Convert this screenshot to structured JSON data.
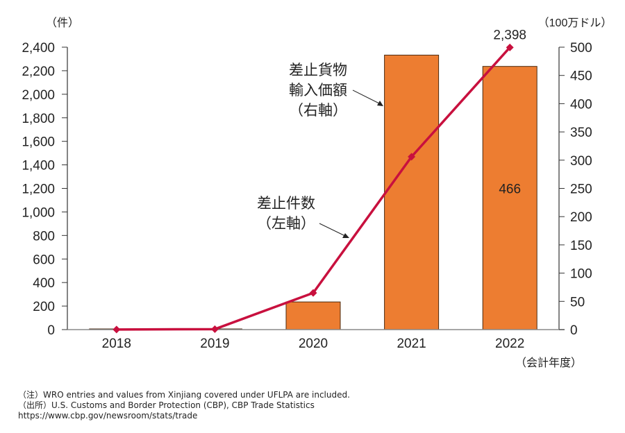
{
  "chart_data": {
    "type": "bar+line",
    "categories": [
      "2018",
      "2019",
      "2020",
      "2021",
      "2022"
    ],
    "series": [
      {
        "name": "差止貨物輸入価額（右軸）",
        "type": "bar",
        "axis": "right",
        "values": [
          0.5,
          0.5,
          49,
          486,
          466
        ],
        "color": "#ED7D31"
      },
      {
        "name": "差止件数（左軸）",
        "type": "line",
        "axis": "left",
        "values": [
          1,
          4,
          312,
          1469,
          2398
        ],
        "color": "#C8103E"
      }
    ],
    "left_axis": {
      "unit_label": "（件）",
      "range": [
        0,
        2400
      ],
      "ticks": [
        "0",
        "200",
        "400",
        "600",
        "800",
        "1,000",
        "1,200",
        "1,400",
        "1,600",
        "1,800",
        "2,000",
        "2,200",
        "2,400"
      ]
    },
    "right_axis": {
      "unit_label": "（100万ドル）",
      "range": [
        0,
        500
      ],
      "ticks": [
        "0",
        "50",
        "100",
        "150",
        "200",
        "250",
        "300",
        "350",
        "400",
        "450",
        "500"
      ]
    },
    "xlabel": "（会計年度）",
    "data_labels": {
      "line_last": "2,398",
      "bar_2022": "466"
    },
    "annotations": {
      "bar_label_lines": [
        "差止貨物",
        "輸入価額",
        "（右軸）"
      ],
      "line_label_lines": [
        "差止件数",
        "（左軸）"
      ]
    },
    "grid": false,
    "legend": "none"
  },
  "notes": {
    "note": "（注）WRO entries and values from Xinjiang covered under UFLPA are included.",
    "source": "（出所）U.S. Customs and Border Protection (CBP), CBP Trade Statistics",
    "url": "https://www.cbp.gov/newsroom/stats/trade"
  }
}
